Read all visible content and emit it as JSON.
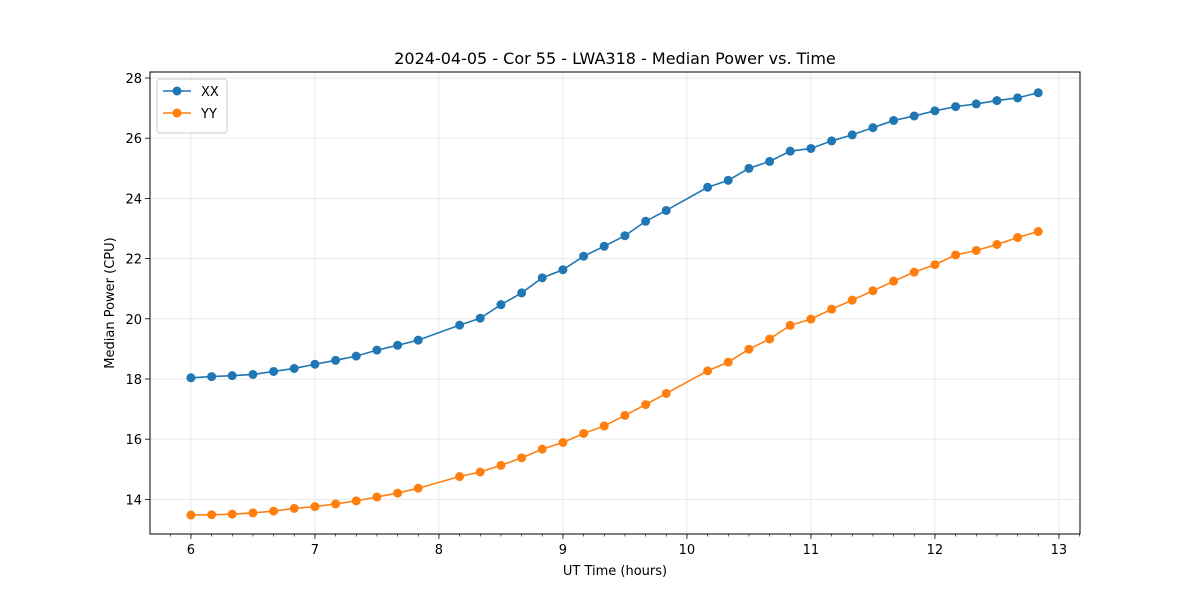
{
  "chart_data": {
    "type": "line",
    "title": "2024-04-05 - Cor 55 - LWA318 - Median Power vs. Time",
    "xlabel": "UT Time (hours)",
    "ylabel": "Median Power (CPU)",
    "xlim": [
      5.67,
      13.17
    ],
    "ylim": [
      12.85,
      28.2
    ],
    "xticks": [
      6,
      7,
      8,
      9,
      10,
      11,
      12,
      13
    ],
    "yticks": [
      14,
      16,
      18,
      20,
      22,
      24,
      26,
      28
    ],
    "grid": true,
    "legend_position": "top-left",
    "x": [
      6.0,
      6.167,
      6.333,
      6.5,
      6.667,
      6.833,
      7.0,
      7.167,
      7.333,
      7.5,
      7.667,
      7.833,
      8.167,
      8.333,
      8.5,
      8.667,
      8.833,
      9.0,
      9.167,
      9.333,
      9.5,
      9.667,
      9.833,
      10.167,
      10.333,
      10.5,
      10.667,
      10.833,
      11.0,
      11.167,
      11.333,
      11.5,
      11.667,
      11.833,
      12.0,
      12.167,
      12.333,
      12.5,
      12.667,
      12.833
    ],
    "series": [
      {
        "name": "XX",
        "color": "#1f77b4",
        "values": [
          18.04,
          18.08,
          18.11,
          18.15,
          18.25,
          18.35,
          18.49,
          18.62,
          18.76,
          18.96,
          19.12,
          19.29,
          19.79,
          20.02,
          20.47,
          20.86,
          21.36,
          21.63,
          22.08,
          22.41,
          22.76,
          23.24,
          23.6,
          24.37,
          24.6,
          25.0,
          25.23,
          25.57,
          25.66,
          25.91,
          26.11,
          26.35,
          26.59,
          26.74,
          26.91,
          27.05,
          27.14,
          27.25,
          27.34,
          27.51
        ]
      },
      {
        "name": "YY",
        "color": "#ff7f0e",
        "values": [
          13.48,
          13.49,
          13.51,
          13.55,
          13.61,
          13.7,
          13.76,
          13.85,
          13.95,
          14.08,
          14.21,
          14.37,
          14.76,
          14.91,
          15.13,
          15.38,
          15.67,
          15.89,
          16.19,
          16.44,
          16.79,
          17.15,
          17.52,
          18.27,
          18.56,
          18.99,
          19.33,
          19.78,
          19.99,
          20.32,
          20.62,
          20.93,
          21.25,
          21.55,
          21.8,
          22.12,
          22.27,
          22.47,
          22.7,
          22.9
        ]
      }
    ]
  }
}
